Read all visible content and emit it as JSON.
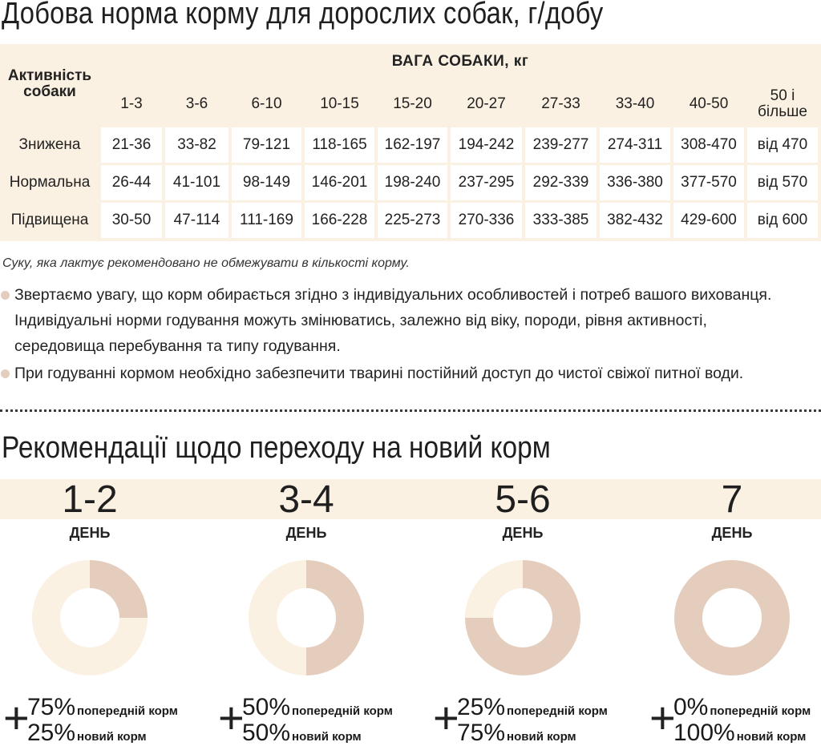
{
  "title_daily": "Добова норма корму для дорослих собак, г/добу",
  "table": {
    "activity_header": "Активність собаки",
    "weight_header": "ВАГА СОБАКИ, кг",
    "weight_ranges": [
      "1-3",
      "3-6",
      "6-10",
      "10-15",
      "15-20",
      "20-27",
      "27-33",
      "33-40",
      "40-50",
      "50 і більше"
    ],
    "rows": [
      {
        "activity": "Знижена",
        "values": [
          "21-36",
          "33-82",
          "79-121",
          "118-165",
          "162-197",
          "194-242",
          "239-277",
          "274-311",
          "308-470",
          "від 470"
        ]
      },
      {
        "activity": "Нормальна",
        "values": [
          "26-44",
          "41-101",
          "98-149",
          "146-201",
          "198-240",
          "237-295",
          "292-339",
          "336-380",
          "377-570",
          "від 570"
        ]
      },
      {
        "activity": "Підвищена",
        "values": [
          "30-50",
          "47-114",
          "111-169",
          "166-228",
          "225-273",
          "270-336",
          "333-385",
          "382-432",
          "429-600",
          "від 600"
        ]
      }
    ]
  },
  "note_lactating": "Суку, яка лактує рекомендовано не обмежувати в кількості корму.",
  "bullets": [
    "Звертаємо увагу, що корм обирається згідно з індивідуальних особливостей і потреб вашого вихованця. Індивідуальні норми годування можуть змінюватись, залежно від віку, породи, рівня активності, середовища перебування та типу годування.",
    "При годуванні кормом необхідно забезпечити тварині постійний доступ до чистої свіжої питної води."
  ],
  "title_transition": "Рекомендації щодо переходу на новий корм",
  "colors": {
    "old_food": "#fbf1e2",
    "new_food": "#e4cdbd",
    "band": "#fbf1e2"
  },
  "transition": [
    {
      "days": "1-2",
      "day_label": "ДЕНЬ",
      "old_pct": "75%",
      "old_label": "попередній корм",
      "new_pct": "25%",
      "new_label": "новий корм",
      "new_fraction": 0.25
    },
    {
      "days": "3-4",
      "day_label": "ДЕНЬ",
      "old_pct": "50%",
      "old_label": "попередній корм",
      "new_pct": "50%",
      "new_label": "новий корм",
      "new_fraction": 0.5
    },
    {
      "days": "5-6",
      "day_label": "ДЕНЬ",
      "old_pct": "25%",
      "old_label": "попередній корм",
      "new_pct": "75%",
      "new_label": "новий корм",
      "new_fraction": 0.75
    },
    {
      "days": "7",
      "day_label": "ДЕНЬ",
      "old_pct": "0%",
      "old_label": "попередній корм",
      "new_pct": "100%",
      "new_label": "новий корм",
      "new_fraction": 1.0
    }
  ],
  "plus_sign": "+"
}
